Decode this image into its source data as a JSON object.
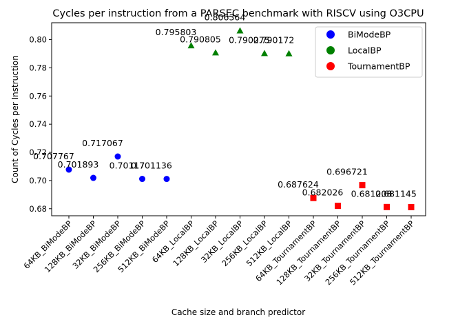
{
  "chart_data": {
    "type": "scatter",
    "title": "Cycles per instruction from a PARSEC benchmark with RISCV using O3CPU",
    "xlabel": "Cache size and branch predictor",
    "ylabel": "Count of Cycles per Instruction",
    "ylim": [
      0.675,
      0.812
    ],
    "yticks": [
      0.68,
      0.7,
      0.72,
      0.74,
      0.76,
      0.78,
      0.8
    ],
    "ytick_labels": [
      "0.68",
      "0.70",
      "0.72",
      "0.74",
      "0.76",
      "0.78",
      "0.80"
    ],
    "grid": false,
    "legend_position": "top-right",
    "categories": [
      "64KB_BiModeBP",
      "128KB_BiModeBP",
      "32KB_BiModeBP",
      "256KB_BiModeBP",
      "512KB_BiModeBP",
      "64KB_LocalBP",
      "128KB_LocalBP",
      "32KB_LocalBP",
      "256KB_LocalBP",
      "512KB_LocalBP",
      "64KB_TournamentBP",
      "128KB_TournamentBP",
      "32KB_TournamentBP",
      "256KB_TournamentBP",
      "512KB_TournamentBP"
    ],
    "series": [
      {
        "name": "BiModeBP",
        "color": "#0000ff",
        "marker": "circle",
        "points": [
          {
            "category": "64KB_BiModeBP",
            "y": 0.707767,
            "label": "0.707767"
          },
          {
            "category": "128KB_BiModeBP",
            "y": 0.701893,
            "label": "0.701893"
          },
          {
            "category": "32KB_BiModeBP",
            "y": 0.717067,
            "label": "0.717067"
          },
          {
            "category": "256KB_BiModeBP",
            "y": 0.70117,
            "label": "0.70117"
          },
          {
            "category": "512KB_BiModeBP",
            "y": 0.701136,
            "label": "0.701136"
          }
        ]
      },
      {
        "name": "LocalBP",
        "color": "#008000",
        "marker": "triangle",
        "points": [
          {
            "category": "64KB_LocalBP",
            "y": 0.795803,
            "label": "0.795803"
          },
          {
            "category": "128KB_LocalBP",
            "y": 0.790805,
            "label": "0.790805"
          },
          {
            "category": "32KB_LocalBP",
            "y": 0.806364,
            "label": "0.806364"
          },
          {
            "category": "256KB_LocalBP",
            "y": 0.790275,
            "label": "0.790275"
          },
          {
            "category": "512KB_LocalBP",
            "y": 0.790172,
            "label": "0.790172"
          }
        ]
      },
      {
        "name": "TournamentBP",
        "color": "#ff0000",
        "marker": "square",
        "points": [
          {
            "category": "64KB_TournamentBP",
            "y": 0.687624,
            "label": "0.687624"
          },
          {
            "category": "128KB_TournamentBP",
            "y": 0.682026,
            "label": "0.682026"
          },
          {
            "category": "32KB_TournamentBP",
            "y": 0.696721,
            "label": "0.696721"
          },
          {
            "category": "256KB_TournamentBP",
            "y": 0.681208,
            "label": "0.681208"
          },
          {
            "category": "512KB_TournamentBP",
            "y": 0.681145,
            "label": "0.681145"
          }
        ]
      }
    ]
  }
}
